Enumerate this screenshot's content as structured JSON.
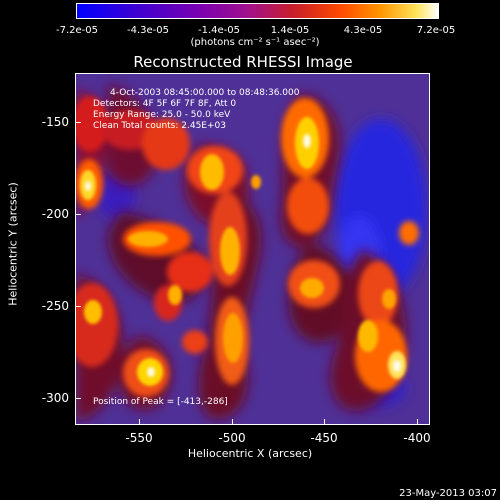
{
  "colorbar": {
    "tick_labels": [
      "-7.2e-05",
      "-4.3e-05",
      "-1.4e-05",
      "1.4e-05",
      "4.3e-05",
      "7.2e-05"
    ],
    "unit_label": "(photons cm⁻² s⁻¹ asec⁻²)",
    "colors": [
      "#0000ff",
      "#7b00b0",
      "#c81e2a",
      "#ff9600",
      "#ffffff"
    ]
  },
  "plot": {
    "title": "Reconstructed RHESSI Image",
    "info_lines": [
      "4-Oct-2003 08:45:00.000 to 08:48:36.000",
      "Detectors: 4F 5F 6F 7F 8F, Att 0",
      "Energy Range: 25.0 - 50.0 keV",
      "Clean    Total counts: 2.45E+03"
    ],
    "peak_label": "Position of Peak = [-413,-286]",
    "x_axis_title": "Heliocentric X (arcsec)",
    "y_axis_title": "Heliocentric Y (arcsec)",
    "x_ticks": [
      "-550",
      "-500",
      "-450",
      "-400"
    ],
    "y_ticks": [
      "-150",
      "-200",
      "-250",
      "-300"
    ]
  },
  "footer": {
    "timestamp": "23-May-2013 03:07"
  }
}
